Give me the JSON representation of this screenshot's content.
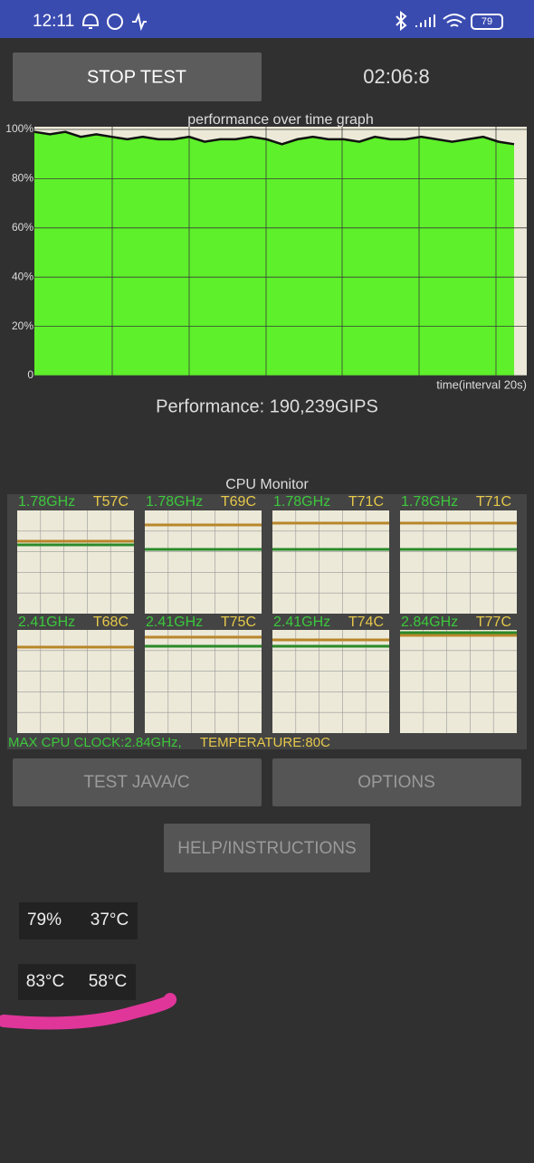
{
  "status_bar": {
    "time": "12:11",
    "battery": "79"
  },
  "controls": {
    "stop_button": "STOP TEST",
    "timer": "02:06:8"
  },
  "chart_data": {
    "type": "area",
    "title": "performance over time graph",
    "x_label": "time(interval 20s)",
    "ylim": [
      0,
      100
    ],
    "yticks": [
      {
        "value": 100,
        "label": "100%"
      },
      {
        "value": 80,
        "label": "80%"
      },
      {
        "value": 60,
        "label": "60%"
      },
      {
        "value": 40,
        "label": "40%"
      },
      {
        "value": 20,
        "label": "20%"
      },
      0
    ],
    "color": "#5ef02a",
    "values": [
      99,
      98,
      99,
      97,
      98,
      97,
      96,
      97,
      96,
      96,
      97,
      95,
      96,
      96,
      97,
      96,
      94,
      96,
      97,
      96,
      96,
      95,
      97,
      96,
      96,
      97,
      96,
      95,
      96,
      97,
      95,
      94
    ]
  },
  "performance": "Performance: 190,239GIPS",
  "cpu_monitor": {
    "title": "CPU Monitor",
    "cores": [
      {
        "freq": "1.78GHz",
        "temp": "T57C"
      },
      {
        "freq": "1.78GHz",
        "temp": "T69C"
      },
      {
        "freq": "1.78GHz",
        "temp": "T71C"
      },
      {
        "freq": "1.78GHz",
        "temp": "T71C"
      },
      {
        "freq": "2.41GHz",
        "temp": "T68C"
      },
      {
        "freq": "2.41GHz",
        "temp": "T75C"
      },
      {
        "freq": "2.41GHz",
        "temp": "T74C"
      },
      {
        "freq": "2.84GHz",
        "temp": "T77C"
      }
    ],
    "max_clock": "MAX CPU CLOCK:2.84GHz,",
    "temperature": "TEMPERATURE:80C"
  },
  "buttons": {
    "test": "TEST JAVA/C",
    "options": "OPTIONS",
    "help": "HELP/INSTRUCTIONS"
  },
  "readouts": [
    [
      "79%",
      "37°C"
    ],
    [
      "83°C",
      "58°C"
    ]
  ]
}
